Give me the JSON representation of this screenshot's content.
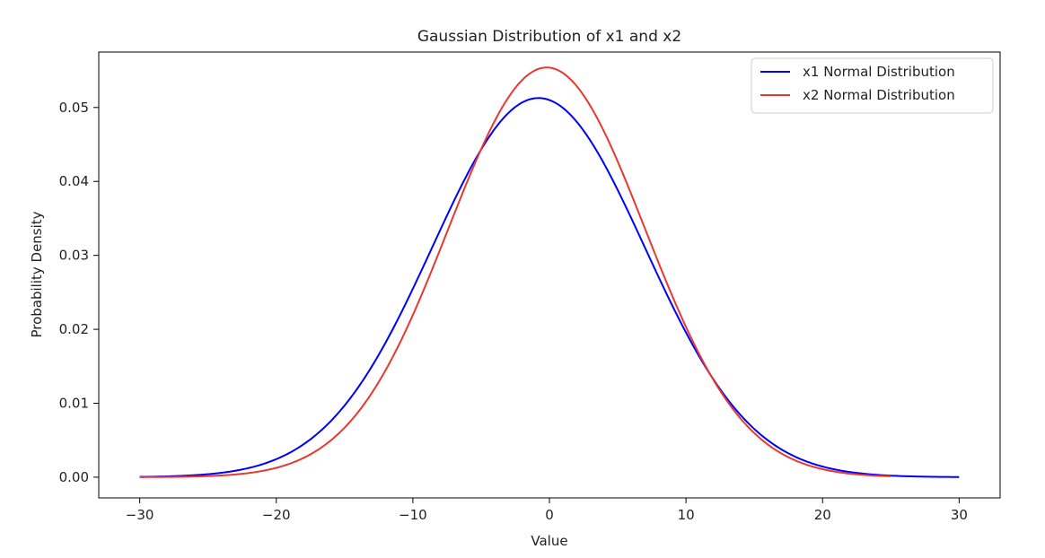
{
  "chart_data": {
    "type": "line",
    "title": "Gaussian Distribution of x1 and x2",
    "xlabel": "Value",
    "ylabel": "Probability Density",
    "xlim": [
      -33,
      33
    ],
    "ylim": [
      -0.0028,
      0.0575
    ],
    "xticks": [
      -30,
      -20,
      -10,
      0,
      10,
      20,
      30
    ],
    "yticks": [
      0.0,
      0.01,
      0.02,
      0.03,
      0.04,
      0.05
    ],
    "xtick_labels": [
      "−30",
      "−20",
      "−10",
      "0",
      "10",
      "20",
      "30"
    ],
    "ytick_labels": [
      "0.00",
      "0.01",
      "0.02",
      "0.03",
      "0.04",
      "0.05"
    ],
    "grid": false,
    "legend_position": "top-right",
    "series": [
      {
        "name": "x1 Normal Distribution",
        "color": "#0000ff",
        "distribution": "normal",
        "mean": -0.8,
        "std": 7.78,
        "x_range": [
          -30,
          30
        ]
      },
      {
        "name": "x2 Normal Distribution",
        "color": "#e8382f",
        "distribution": "normal",
        "mean": -0.2,
        "std": 7.2,
        "x_range": [
          -30,
          25
        ]
      }
    ]
  }
}
